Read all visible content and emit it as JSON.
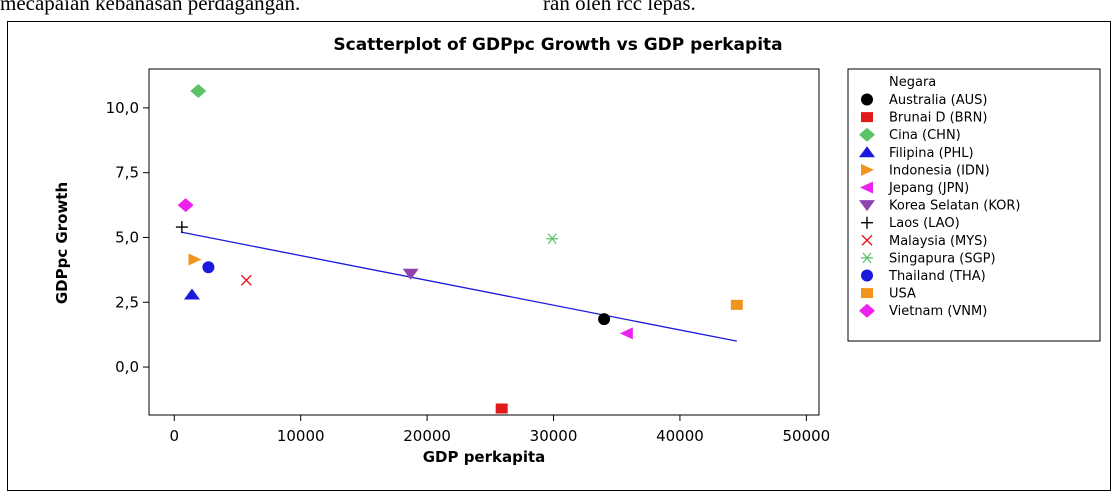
{
  "page_text": {
    "left": "mecapaian kebanasan perdagangan.",
    "right": "ran oleh rcc lepas."
  },
  "chart_data": {
    "type": "scatter",
    "title": "Scatterplot of GDPpc Growth vs GDP perkapita",
    "xlabel": "GDP perkapita",
    "ylabel": "GDPpc Growth",
    "xlim": [
      -2000,
      51000
    ],
    "ylim": [
      -1.85,
      11.5
    ],
    "xticks": [
      0,
      10000,
      20000,
      30000,
      40000,
      50000
    ],
    "xtick_labels": [
      "0",
      "10000",
      "20000",
      "30000",
      "40000",
      "50000"
    ],
    "yticks": [
      0,
      2.5,
      5,
      7.5,
      10
    ],
    "ytick_labels": [
      "0,0",
      "2,5",
      "5,0",
      "7,5",
      "10,0"
    ],
    "grid": false,
    "legend_title": "Negara",
    "legend_position": "right",
    "series": [
      {
        "name": "Australia (AUS)",
        "marker": "circle",
        "color": "#000000",
        "x": 34000,
        "y": 1.85
      },
      {
        "name": "Brunai D (BRN)",
        "marker": "square",
        "color": "#e31a1c",
        "x": 25900,
        "y": -1.6
      },
      {
        "name": "Cina (CHN)",
        "marker": "diamond",
        "color": "#5cc266",
        "x": 1900,
        "y": 10.65
      },
      {
        "name": "Filipina (PHL)",
        "marker": "triangle-up",
        "color": "#1a1adc",
        "x": 1400,
        "y": 2.8
      },
      {
        "name": "Indonesia (IDN)",
        "marker": "triangle-right",
        "color": "#f2931e",
        "x": 1600,
        "y": 4.15
      },
      {
        "name": "Jepang (JPN)",
        "marker": "triangle-left",
        "color": "#ee22ee",
        "x": 35800,
        "y": 1.3
      },
      {
        "name": "Korea Selatan (KOR)",
        "marker": "triangle-down",
        "color": "#8e44ad",
        "x": 18700,
        "y": 3.6
      },
      {
        "name": "Laos (LAO)",
        "marker": "plus",
        "color": "#000000",
        "x": 600,
        "y": 5.4
      },
      {
        "name": "Malaysia (MYS)",
        "marker": "cross",
        "color": "#e31a1c",
        "x": 5700,
        "y": 3.35
      },
      {
        "name": "Singapura (SGP)",
        "marker": "asterisk",
        "color": "#5cc266",
        "x": 29900,
        "y": 4.95
      },
      {
        "name": "Thailand (THA)",
        "marker": "circle",
        "color": "#1a1adc",
        "x": 2700,
        "y": 3.85
      },
      {
        "name": "USA",
        "marker": "square",
        "color": "#f2931e",
        "x": 44500,
        "y": 2.4
      },
      {
        "name": "Vietnam (VNM)",
        "marker": "diamond",
        "color": "#ee22ee",
        "x": 900,
        "y": 6.25
      }
    ],
    "regression_line": {
      "color": "#1a1adc",
      "x": [
        600,
        44500
      ],
      "y": [
        5.2,
        1.0
      ]
    }
  }
}
